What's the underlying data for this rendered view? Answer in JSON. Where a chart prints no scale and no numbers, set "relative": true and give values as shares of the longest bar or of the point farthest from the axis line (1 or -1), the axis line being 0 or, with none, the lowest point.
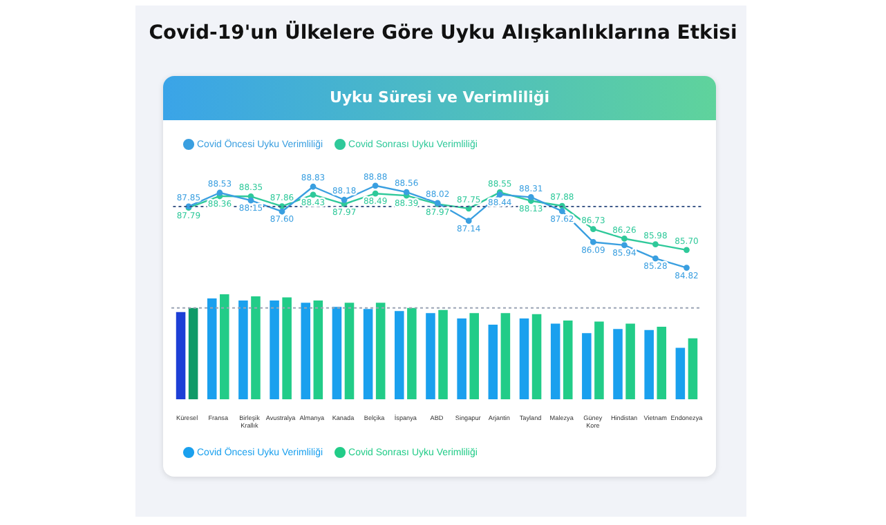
{
  "chart_data": [
    {
      "type": "line",
      "title": "Covid-19'un Ülkelere Göre Uyku Alışkanlıklarına Etkisi",
      "subtitle": "Uyku Süresi ve Verimliliği",
      "categories": [
        null,
        null,
        null,
        null,
        null,
        null,
        null,
        null,
        null,
        null,
        null,
        null,
        null,
        null,
        null,
        null,
        null
      ],
      "series": [
        {
          "name": "Covid Öncesi Uyku Verimliliği",
          "color": "#3a9fe0",
          "values": [
            87.85,
            88.53,
            88.15,
            87.6,
            88.83,
            88.18,
            88.88,
            88.56,
            88.02,
            87.14,
            88.44,
            88.31,
            87.62,
            86.09,
            85.94,
            85.28,
            84.82
          ],
          "value_labels": [
            "87.85",
            "88.53",
            "88.15",
            "87.60",
            "88.83",
            "88.18",
            "88.88",
            "88.56",
            "88.02",
            "87.14",
            "88.44",
            "88.31",
            "87.62",
            "86.09",
            "85.94",
            "85.28",
            "84.82"
          ]
        },
        {
          "name": "Covid Sonrası Uyku Verimliliği",
          "color": "#2fc99a",
          "values": [
            87.79,
            88.36,
            88.35,
            87.86,
            88.43,
            87.97,
            88.49,
            88.39,
            87.97,
            87.75,
            88.55,
            88.13,
            87.88,
            86.73,
            86.26,
            85.98,
            85.7
          ],
          "value_labels": [
            "87.79",
            "88.36",
            "88.35",
            "87.86",
            "88.43",
            "87.97",
            "88.49",
            "88.39",
            "87.97",
            "87.75",
            "88.55",
            "88.13",
            "87.88",
            "86.73",
            "86.26",
            "85.98",
            "85.70"
          ]
        }
      ],
      "tick_labels": false,
      "grid": false,
      "marker": "circle",
      "line_style": "solid",
      "legend": "top left",
      "ref_lines": [
        {
          "axis": "y",
          "value": 87.85,
          "color": "#3f5a8a",
          "line_style": "dotted"
        }
      ]
    },
    {
      "type": "bar",
      "categories": [
        "Küresel",
        "Fransa",
        "Birleşik Krallık",
        "Avustralya",
        "Almanya",
        "Kanada",
        "Belçika",
        "İspanya",
        "ABD",
        "Singapur",
        "Arjantin",
        "Tayland",
        "Malezya",
        "Güney Kore",
        "Hindistan",
        "Vietnam",
        "Endonezya"
      ],
      "relative": true,
      "tick_labels": "x",
      "grid": false,
      "legend": "bottom left",
      "series": [
        {
          "name": "Covid Öncesi Uyku Verimliliği",
          "color": "#1aa0ee",
          "colors": [
            "#1d3fd6",
            "#1aa0ee",
            "#1aa0ee",
            "#1aa0ee",
            "#1aa0ee",
            "#1aa0ee",
            "#1aa0ee",
            "#1aa0ee",
            "#1aa0ee",
            "#1aa0ee",
            "#1aa0ee",
            "#1aa0ee",
            "#1aa0ee",
            "#1aa0ee",
            "#1aa0ee",
            "#1aa0ee",
            "#1aa0ee"
          ],
          "values": [
            0.83,
            0.96,
            0.94,
            0.94,
            0.92,
            0.88,
            0.86,
            0.84,
            0.82,
            0.77,
            0.71,
            0.77,
            0.72,
            0.63,
            0.67,
            0.66,
            0.49
          ]
        },
        {
          "name": "Covid Sonrası Uyku Verimliliği",
          "color": "#22cc88",
          "colors": [
            "#0f9a68",
            "#22cc88",
            "#22cc88",
            "#22cc88",
            "#22cc88",
            "#22cc88",
            "#22cc88",
            "#22cc88",
            "#22cc88",
            "#22cc88",
            "#22cc88",
            "#22cc88",
            "#22cc88",
            "#22cc88",
            "#22cc88",
            "#22cc88",
            "#22cc88"
          ],
          "values": [
            0.87,
            1,
            0.98,
            0.97,
            0.94,
            0.92,
            0.92,
            0.87,
            0.85,
            0.82,
            0.82,
            0.81,
            0.75,
            0.74,
            0.72,
            0.69,
            0.58
          ]
        }
      ],
      "ref_lines": [
        {
          "axis": "y",
          "value": 0.87,
          "color": "#9aa4b4",
          "line_style": "dotted"
        }
      ]
    }
  ]
}
